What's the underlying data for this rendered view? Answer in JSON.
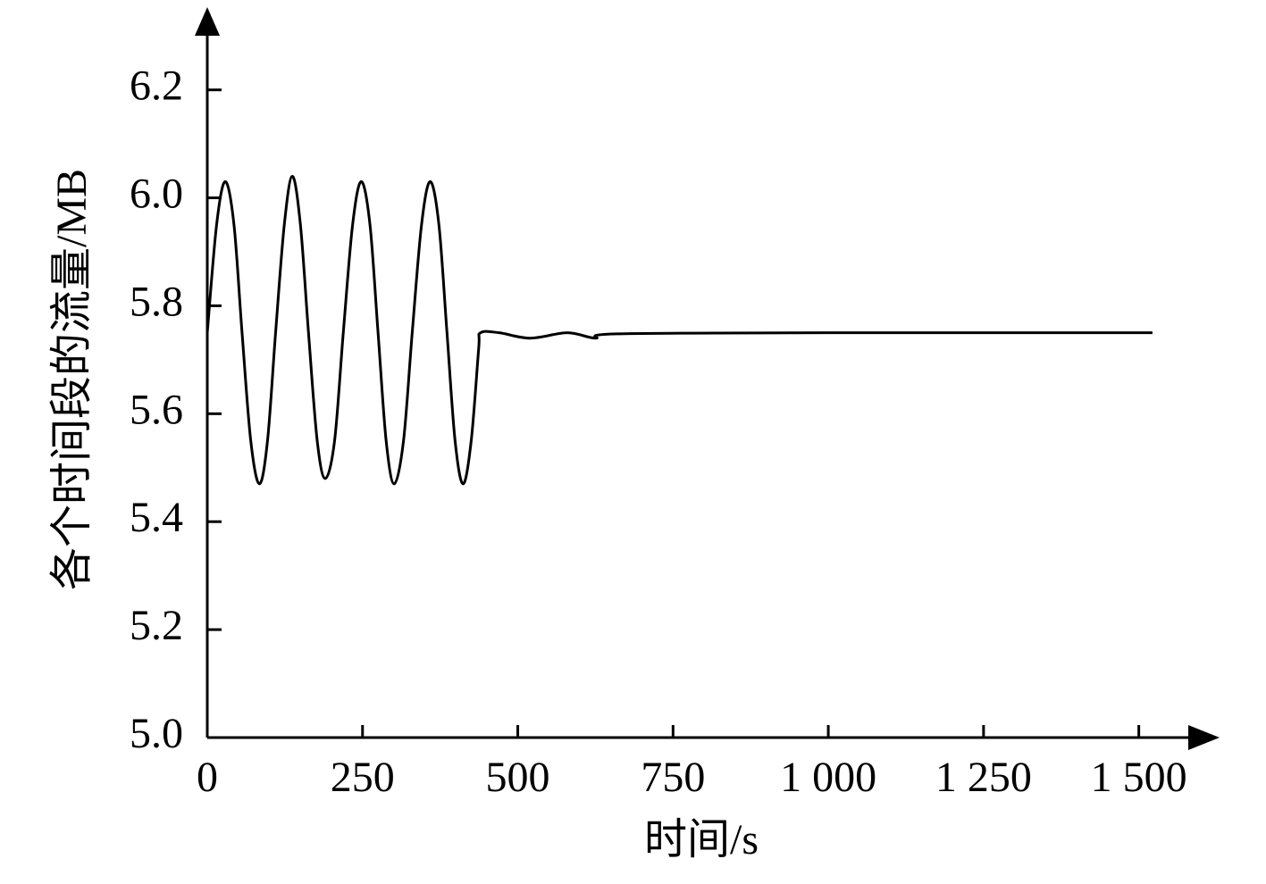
{
  "chart_data": {
    "type": "line",
    "xlabel": "时间/s",
    "ylabel": "各个时间段的流量/MB",
    "xlim": [
      0,
      1630
    ],
    "ylim": [
      5.0,
      6.35
    ],
    "xticks": [
      0,
      250,
      500,
      750,
      {
        "value": 1000,
        "label": "1 000"
      },
      {
        "value": 1250,
        "label": "1 250"
      },
      {
        "value": 1500,
        "label": "1 500"
      }
    ],
    "yticks": [
      {
        "value": 5.0,
        "label": "5.0"
      },
      5.2,
      5.4,
      5.6,
      5.8,
      {
        "value": 6.0,
        "label": "6.0"
      },
      6.2
    ],
    "series": [
      {
        "color": "#000000",
        "x": [
          0,
          15,
          29,
          43,
          56,
          70,
          84,
          97,
          110,
          124,
          137,
          150,
          163,
          177,
          190,
          205,
          219,
          234,
          248,
          262,
          275,
          288,
          301,
          316,
          330,
          345,
          359,
          373,
          386,
          399,
          412,
          425,
          437,
          440,
          470,
          520,
          580,
          625,
          660,
          1000,
          1522
        ],
        "values": [
          5.75,
          5.95,
          6.03,
          5.95,
          5.75,
          5.55,
          5.47,
          5.55,
          5.75,
          5.95,
          6.04,
          5.95,
          5.75,
          5.55,
          5.48,
          5.55,
          5.75,
          5.95,
          6.03,
          5.95,
          5.75,
          5.55,
          5.47,
          5.55,
          5.75,
          5.95,
          6.03,
          5.95,
          5.75,
          5.55,
          5.47,
          5.55,
          5.72,
          5.75,
          5.75,
          5.74,
          5.75,
          5.74,
          5.748,
          5.75,
          5.75
        ]
      }
    ]
  }
}
